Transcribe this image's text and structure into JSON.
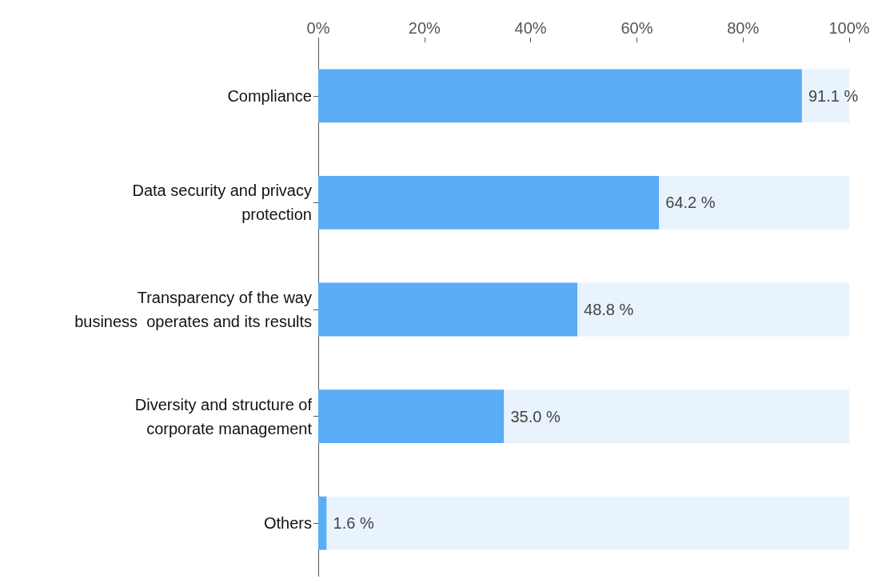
{
  "chart_data": {
    "type": "bar",
    "orientation": "horizontal",
    "stacked": true,
    "categories": [
      "Compliance",
      "Data security and privacy\nprotection",
      "Transparency of the way\nbusiness  operates and its results",
      "Diversity and structure of\ncorporate management",
      "Others"
    ],
    "series": [
      {
        "color": "#5aacf5",
        "values": [
          91.1,
          64.2,
          48.8,
          35.0,
          1.6
        ],
        "value_labels": [
          "91.1 %",
          "64.2 %",
          "48.8 %",
          "35.0 %",
          "1.6 %"
        ]
      },
      {
        "color": "#e8f3fd",
        "values": [
          8.9,
          35.8,
          51.2,
          65.0,
          98.4
        ]
      }
    ],
    "xlim": [
      0,
      100
    ],
    "xticks": [
      {
        "value": 0,
        "label": "0%"
      },
      {
        "value": 20,
        "label": "20%"
      },
      {
        "value": 40,
        "label": "40%"
      },
      {
        "value": 60,
        "label": "60%"
      },
      {
        "value": 80,
        "label": "80%"
      },
      {
        "value": 100,
        "label": "100%"
      }
    ],
    "grid": false
  }
}
